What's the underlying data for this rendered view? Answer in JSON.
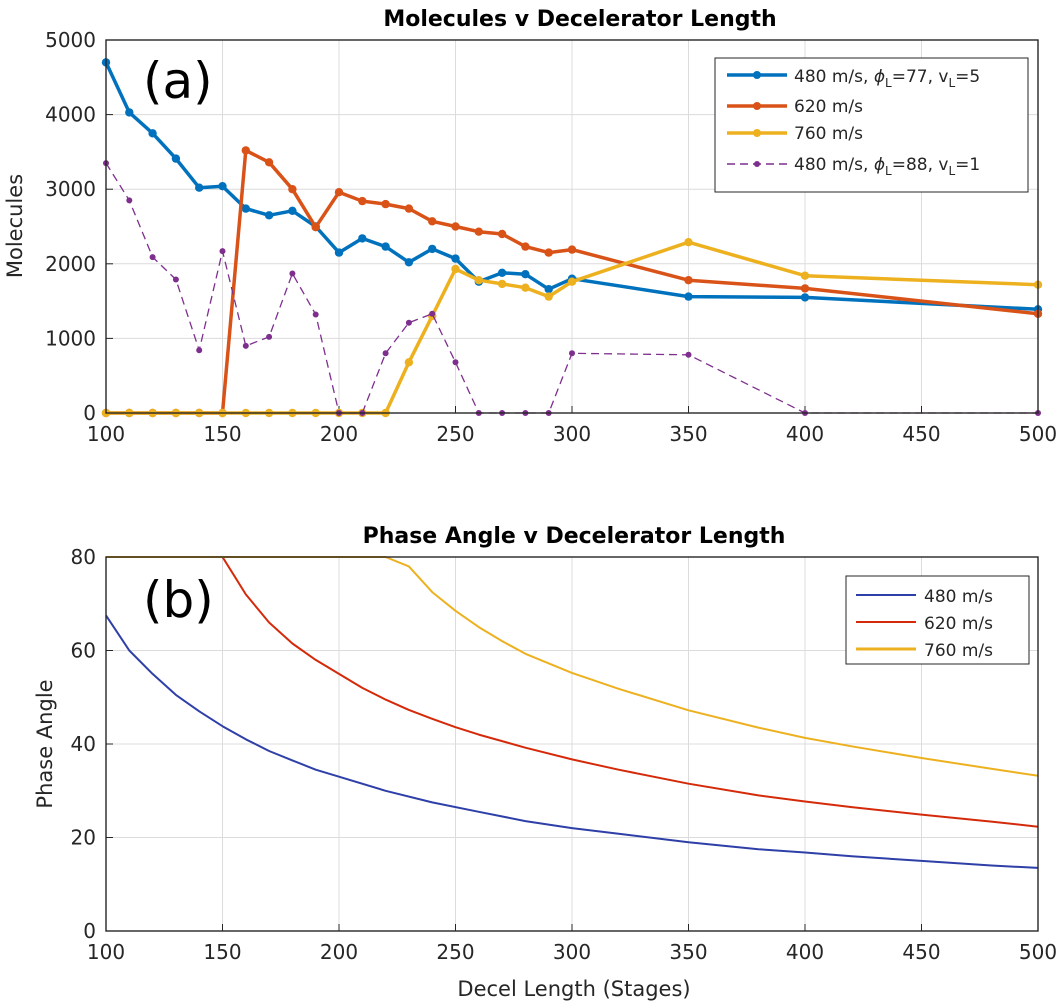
{
  "chart_data": [
    {
      "type": "line",
      "panel_label": "(a)",
      "title": "Molecules v Decelerator Length",
      "xlabel": "",
      "ylabel": "Molecules",
      "xlim": [
        100,
        500
      ],
      "ylim": [
        0,
        5000
      ],
      "xticks": [
        "100",
        "150",
        "200",
        "250",
        "300",
        "350",
        "400",
        "450",
        "500"
      ],
      "yticks": [
        "0",
        "1000",
        "2000",
        "3000",
        "4000",
        "5000"
      ],
      "grid": true,
      "legend_position": "top-right",
      "series": [
        {
          "name": "480 m/s, ϕL=77, vL=5",
          "legend_parts": [
            "480 m/s, ",
            "ϕ",
            "L",
            "=77, v",
            "L",
            "=5"
          ],
          "color": "#0072BD",
          "style": "solid-marker",
          "x": [
            100,
            110,
            120,
            130,
            140,
            150,
            160,
            170,
            180,
            190,
            200,
            210,
            220,
            230,
            240,
            250,
            260,
            270,
            280,
            290,
            300,
            350,
            400,
            500
          ],
          "y": [
            4700,
            4030,
            3750,
            3410,
            3020,
            3040,
            2740,
            2650,
            2710,
            2500,
            2150,
            2340,
            2230,
            2020,
            2200,
            2070,
            1760,
            1880,
            1860,
            1660,
            1800,
            1560,
            1550,
            1390
          ]
        },
        {
          "name": "620 m/s",
          "color": "#D95319",
          "style": "solid-marker",
          "x": [
            100,
            110,
            120,
            130,
            140,
            150,
            160,
            170,
            180,
            190,
            200,
            210,
            220,
            230,
            240,
            250,
            260,
            270,
            280,
            290,
            300,
            350,
            400,
            500
          ],
          "y": [
            0,
            0,
            0,
            0,
            0,
            0,
            3520,
            3360,
            3000,
            2490,
            2960,
            2840,
            2800,
            2740,
            2570,
            2500,
            2430,
            2400,
            2230,
            2150,
            2190,
            1780,
            1670,
            1330
          ]
        },
        {
          "name": "760 m/s",
          "color": "#EDB120",
          "style": "solid-marker",
          "x": [
            100,
            110,
            120,
            130,
            140,
            150,
            160,
            170,
            180,
            190,
            200,
            210,
            220,
            230,
            240,
            250,
            260,
            270,
            280,
            290,
            300,
            350,
            400,
            500
          ],
          "y": [
            0,
            0,
            0,
            0,
            0,
            0,
            0,
            0,
            0,
            0,
            0,
            0,
            0,
            680,
            1300,
            1930,
            1780,
            1730,
            1680,
            1560,
            1760,
            2290,
            1840,
            1720
          ]
        },
        {
          "name": "480 m/s, ϕL=88, vL=1",
          "legend_parts": [
            "480 m/s, ",
            "ϕ",
            "L",
            "=88, v",
            "L",
            "=1"
          ],
          "color": "#7E2F8E",
          "style": "dashed-marker",
          "x": [
            100,
            110,
            120,
            130,
            140,
            150,
            160,
            170,
            180,
            190,
            200,
            210,
            220,
            230,
            240,
            250,
            260,
            270,
            280,
            290,
            300,
            350,
            400,
            500
          ],
          "y": [
            3350,
            2850,
            2090,
            1790,
            840,
            2170,
            900,
            1020,
            1870,
            1320,
            0,
            0,
            800,
            1210,
            1330,
            680,
            0,
            0,
            0,
            0,
            800,
            780,
            0,
            0
          ]
        }
      ]
    },
    {
      "type": "line",
      "panel_label": "(b)",
      "title": "Phase Angle v Decelerator Length",
      "xlabel": "Decel Length (Stages)",
      "ylabel": "Phase Angle",
      "xlim": [
        100,
        500
      ],
      "ylim": [
        0,
        80
      ],
      "xticks": [
        "100",
        "150",
        "200",
        "250",
        "300",
        "350",
        "400",
        "450",
        "500"
      ],
      "yticks": [
        "0",
        "20",
        "40",
        "60",
        "80"
      ],
      "grid": true,
      "legend_position": "top-right",
      "series": [
        {
          "name": "480 m/s",
          "color": "#2E3FA8",
          "x": [
            100,
            110,
            120,
            130,
            140,
            150,
            160,
            170,
            180,
            190,
            200,
            220,
            240,
            260,
            280,
            300,
            320,
            350,
            380,
            400,
            420,
            450,
            480,
            500
          ],
          "y": [
            67.5,
            60,
            55,
            50.5,
            47,
            43.8,
            41,
            38.5,
            36.5,
            34.5,
            33,
            30,
            27.5,
            25.5,
            23.5,
            22,
            20.8,
            19,
            17.5,
            16.8,
            16,
            15,
            14,
            13.5
          ]
        },
        {
          "name": "620 m/s",
          "color": "#D42A0A",
          "x": [
            150,
            155,
            160,
            170,
            180,
            190,
            200,
            210,
            220,
            230,
            240,
            250,
            260,
            280,
            300,
            320,
            350,
            380,
            400,
            420,
            450,
            480,
            500
          ],
          "y": [
            80,
            76,
            72,
            66,
            61.5,
            58,
            55,
            52,
            49.5,
            47.3,
            45.4,
            43.6,
            42,
            39.2,
            36.7,
            34.5,
            31.5,
            29,
            27.7,
            26.5,
            24.9,
            23.4,
            22.3
          ]
        },
        {
          "name": "760 m/s",
          "color": "#EDB120",
          "x": [
            100,
            150,
            200,
            220,
            230,
            240,
            250,
            260,
            270,
            280,
            300,
            320,
            350,
            380,
            400,
            420,
            450,
            480,
            500
          ],
          "y": [
            80,
            80,
            80,
            80,
            78,
            72.5,
            68.5,
            65,
            62,
            59.3,
            55.2,
            51.8,
            47.2,
            43.5,
            41.3,
            39.5,
            37,
            34.7,
            33.2
          ]
        }
      ]
    }
  ]
}
